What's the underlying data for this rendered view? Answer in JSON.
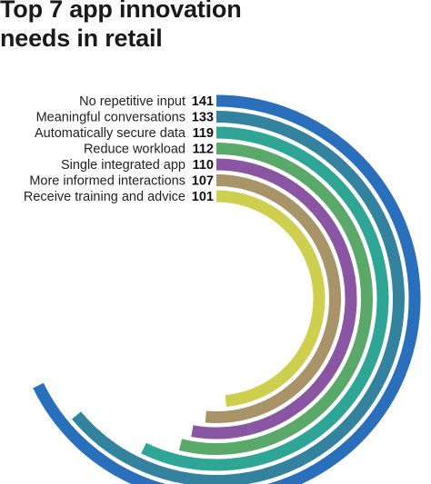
{
  "title_lines": [
    "Top 7 app innovation",
    "needs in retail"
  ],
  "chart_data": {
    "type": "radial-bar",
    "title": "Top 7 app innovation needs in retail",
    "categories": [
      "No repetitive input",
      "Meaningful conversations",
      "Automatically secure data",
      "Reduce workload",
      "Single integrated app",
      "More informed interactions",
      "Receive training and advice"
    ],
    "values": [
      141,
      133,
      119,
      112,
      110,
      107,
      101
    ],
    "colors": [
      "#2a6fbb",
      "#33839f",
      "#2fa596",
      "#5aa96a",
      "#8a55a2",
      "#a89468",
      "#cfcf4f"
    ]
  }
}
